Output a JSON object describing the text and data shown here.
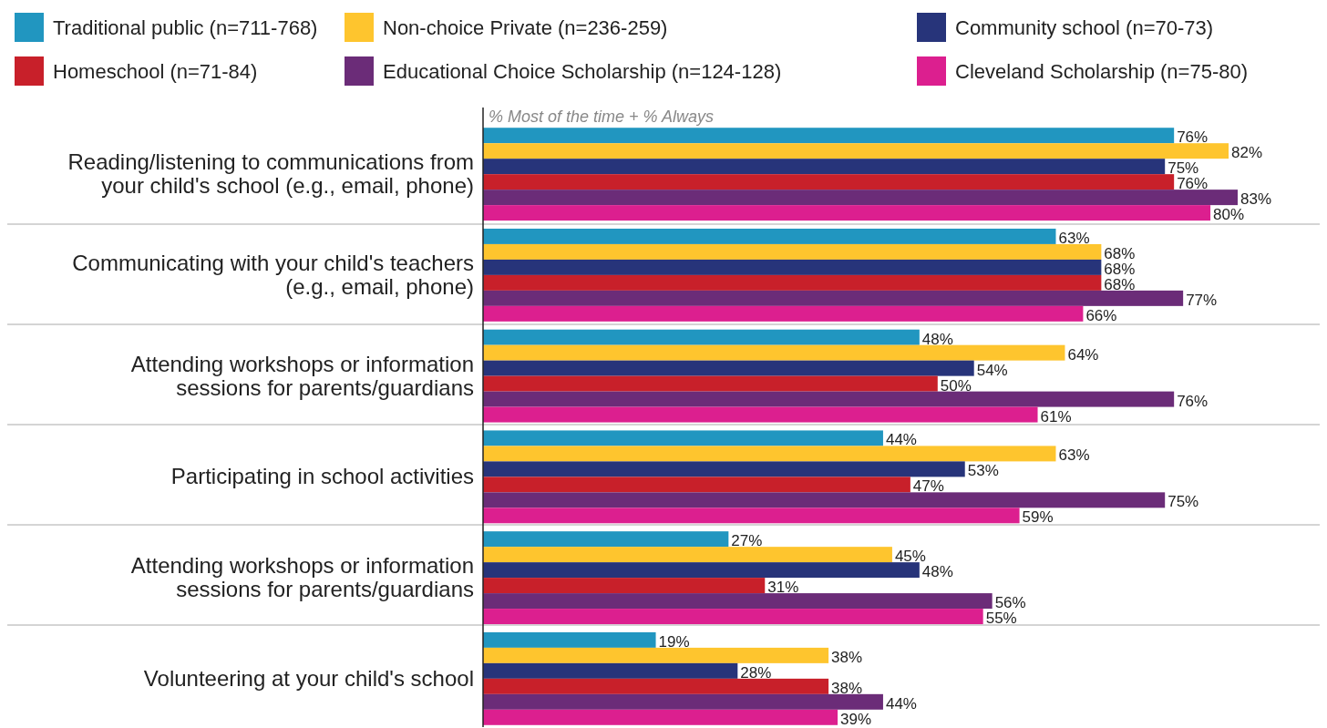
{
  "chart_data": {
    "type": "bar",
    "orientation": "horizontal",
    "legend": "top",
    "annotations": [
      "% Most of the time + % Always"
    ],
    "categories": [
      "Reading/listening to communications from your child's school (e.g., email, phone)",
      "Communicating with your child's teachers (e.g., email, phone)",
      "Attending workshops or information sessions for parents/guardians",
      "Participating in school activities",
      "Attending workshops or information sessions for parents/guardians",
      "Volunteering at your child's school"
    ],
    "series": [
      {
        "name": "Traditional public (n=711-768)",
        "color": "#2196c0",
        "values": [
          76,
          63,
          48,
          44,
          27,
          19
        ],
        "value_labels": [
          "76%",
          "63%",
          "48%",
          "44%",
          "27%",
          "19%"
        ]
      },
      {
        "name": "Non-choice Private (n=236-259)",
        "color": "#fec52e",
        "values": [
          82,
          68,
          64,
          63,
          45,
          38
        ],
        "value_labels": [
          "82%",
          "68%",
          "64%",
          "63%",
          "45%",
          "38%"
        ]
      },
      {
        "name": "Community school (n=70-73)",
        "color": "#27347a",
        "values": [
          75,
          68,
          54,
          53,
          48,
          28
        ],
        "value_labels": [
          "75%",
          "68%",
          "54%",
          "53%",
          "48%",
          "28%"
        ]
      },
      {
        "name": "Homeschool (n=71-84)",
        "color": "#c8202a",
        "values": [
          76,
          68,
          50,
          47,
          31,
          38
        ],
        "value_labels": [
          "76%",
          "68%",
          "50%",
          "47%",
          "31%",
          "38%"
        ]
      },
      {
        "name": "Educational Choice Scholarship (n=124-128)",
        "color": "#6b2c78",
        "values": [
          83,
          77,
          76,
          75,
          56,
          44
        ],
        "value_labels": [
          "83%",
          "77%",
          "76%",
          "75%",
          "56%",
          "44%"
        ]
      },
      {
        "name": "Cleveland Scholarship (n=75-80)",
        "color": "#dc1f8f",
        "values": [
          80,
          66,
          61,
          59,
          55,
          39
        ],
        "value_labels": [
          "80%",
          "66%",
          "61%",
          "59%",
          "55%",
          "39%"
        ]
      }
    ]
  }
}
